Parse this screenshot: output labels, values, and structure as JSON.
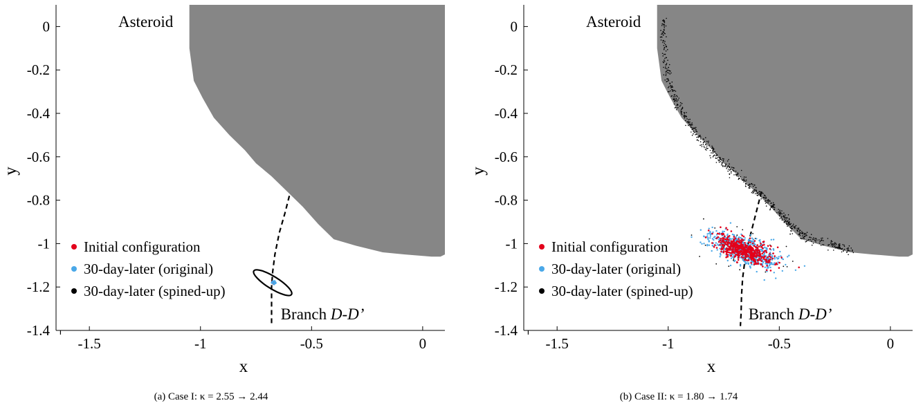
{
  "chart_data": [
    {
      "type": "scatter",
      "panel_id": "a",
      "caption": "(a) Case I: κ = 2.55 → 2.44",
      "xlabel": "x",
      "ylabel": "y",
      "xlim": [
        -1.65,
        0.1
      ],
      "ylim": [
        -1.4,
        0.1
      ],
      "xticks": [
        -1.5,
        -1,
        -0.5,
        0
      ],
      "xtick_labels": [
        "-1.5",
        "-1",
        "-0.5",
        "0"
      ],
      "yticks": [
        0,
        -0.2,
        -0.4,
        -0.6,
        -0.8,
        -1,
        -1.2,
        -1.4
      ],
      "ytick_labels": [
        "0",
        "-0.2",
        "-0.4",
        "-0.6",
        "-0.8",
        "-1",
        "-1.2",
        "-1.4"
      ],
      "grid": false,
      "legend_position": "lower-left",
      "asteroid_label": "Asteroid",
      "branch_label": "Branch D-D’",
      "asteroid_boundary": [
        [
          -1.05,
          0.1
        ],
        [
          -1.05,
          -0.1
        ],
        [
          -1.03,
          -0.25
        ],
        [
          -0.99,
          -0.33
        ],
        [
          -0.94,
          -0.42
        ],
        [
          -0.87,
          -0.5
        ],
        [
          -0.8,
          -0.57
        ],
        [
          -0.75,
          -0.63
        ],
        [
          -0.68,
          -0.69
        ],
        [
          -0.61,
          -0.76
        ],
        [
          -0.54,
          -0.83
        ],
        [
          -0.47,
          -0.91
        ],
        [
          -0.4,
          -0.98
        ],
        [
          -0.3,
          -1.01
        ],
        [
          -0.18,
          -1.04
        ],
        [
          -0.08,
          -1.05
        ],
        [
          0.04,
          -1.06
        ],
        [
          0.08,
          -1.06
        ],
        [
          0.1,
          -1.05
        ],
        [
          0.1,
          0.1
        ]
      ],
      "branch_curve": [
        [
          -0.6,
          -0.78
        ],
        [
          -0.62,
          -0.86
        ],
        [
          -0.645,
          -0.95
        ],
        [
          -0.665,
          -1.05
        ],
        [
          -0.675,
          -1.13
        ],
        [
          -0.68,
          -1.2
        ],
        [
          -0.68,
          -1.28
        ],
        [
          -0.68,
          -1.37
        ]
      ],
      "spined_up_ellipse": {
        "center": [
          -0.675,
          -1.18
        ],
        "rx": 0.1,
        "ry": 0.028,
        "angle_deg": -32
      },
      "series": [
        {
          "name": "Initial configuration",
          "color": "#e3001b",
          "points": [
            [
              -0.672,
              -1.178
            ],
            [
              -0.668,
              -1.182
            ],
            [
              -0.676,
              -1.176
            ],
            [
              -0.671,
              -1.184
            ],
            [
              -0.665,
              -1.179
            ]
          ]
        },
        {
          "name": "30-day-later (original)",
          "color": "#4aa8e8",
          "points": [
            [
              -0.674,
              -1.175
            ],
            [
              -0.669,
              -1.186
            ],
            [
              -0.663,
              -1.181
            ],
            [
              -0.678,
              -1.18
            ],
            [
              -0.667,
              -1.174
            ]
          ]
        },
        {
          "name": "30-day-later (spined-up)",
          "color": "#000000",
          "points": []
        }
      ],
      "outlier_ticks": [
        [
          -1.63,
          -1.4
        ]
      ]
    },
    {
      "type": "scatter",
      "panel_id": "b",
      "caption": "(b) Case II: κ = 1.80 → 1.74",
      "xlabel": "x",
      "ylabel": "y",
      "xlim": [
        -1.65,
        0.1
      ],
      "ylim": [
        -1.4,
        0.1
      ],
      "xticks": [
        -1.5,
        -1,
        -0.5,
        0
      ],
      "xtick_labels": [
        "-1.5",
        "-1",
        "-0.5",
        "0"
      ],
      "yticks": [
        0,
        -0.2,
        -0.4,
        -0.6,
        -0.8,
        -1,
        -1.2,
        -1.4
      ],
      "ytick_labels": [
        "0",
        "-0.2",
        "-0.4",
        "-0.6",
        "-0.8",
        "-1",
        "-1.2",
        "-1.4"
      ],
      "grid": false,
      "legend_position": "lower-left",
      "asteroid_label": "Asteroid",
      "branch_label": "Branch D-D’",
      "asteroid_boundary": [
        [
          -1.05,
          0.1
        ],
        [
          -1.05,
          -0.1
        ],
        [
          -1.03,
          -0.25
        ],
        [
          -0.99,
          -0.33
        ],
        [
          -0.94,
          -0.42
        ],
        [
          -0.87,
          -0.5
        ],
        [
          -0.8,
          -0.57
        ],
        [
          -0.75,
          -0.63
        ],
        [
          -0.68,
          -0.69
        ],
        [
          -0.61,
          -0.76
        ],
        [
          -0.54,
          -0.83
        ],
        [
          -0.47,
          -0.91
        ],
        [
          -0.4,
          -0.98
        ],
        [
          -0.3,
          -1.01
        ],
        [
          -0.18,
          -1.04
        ],
        [
          -0.08,
          -1.05
        ],
        [
          0.04,
          -1.06
        ],
        [
          0.08,
          -1.06
        ],
        [
          0.1,
          -1.05
        ],
        [
          0.1,
          0.1
        ]
      ],
      "branch_curve": [
        [
          -0.58,
          -0.76
        ],
        [
          -0.6,
          -0.84
        ],
        [
          -0.62,
          -0.92
        ],
        [
          -0.64,
          -1.0
        ],
        [
          -0.655,
          -1.08
        ],
        [
          -0.665,
          -1.16
        ],
        [
          -0.67,
          -1.24
        ],
        [
          -0.672,
          -1.32
        ],
        [
          -0.675,
          -1.38
        ]
      ],
      "cloud_center": [
        -0.66,
        -1.03
      ],
      "cloud_spread": [
        0.08,
        0.028
      ],
      "cloud_angle_deg": -22,
      "black_debris_band": [
        [
          -1.02,
          0.05
        ],
        [
          -1.02,
          -0.1
        ],
        [
          -1.0,
          -0.25
        ],
        [
          -0.96,
          -0.35
        ],
        [
          -0.91,
          -0.44
        ],
        [
          -0.85,
          -0.52
        ],
        [
          -0.79,
          -0.59
        ],
        [
          -0.73,
          -0.65
        ],
        [
          -0.66,
          -0.71
        ],
        [
          -0.59,
          -0.77
        ],
        [
          -0.53,
          -0.83
        ],
        [
          -0.47,
          -0.89
        ],
        [
          -0.42,
          -0.94
        ],
        [
          -0.36,
          -0.98
        ],
        [
          -0.25,
          -1.01
        ],
        [
          -0.18,
          -1.03
        ]
      ],
      "series": [
        {
          "name": "Initial configuration",
          "color": "#e3001b"
        },
        {
          "name": "30-day-later (original)",
          "color": "#4aa8e8"
        },
        {
          "name": "30-day-later (spined-up)",
          "color": "#000000"
        }
      ],
      "outlier_ticks": [
        [
          -1.63,
          -1.4
        ]
      ]
    }
  ]
}
